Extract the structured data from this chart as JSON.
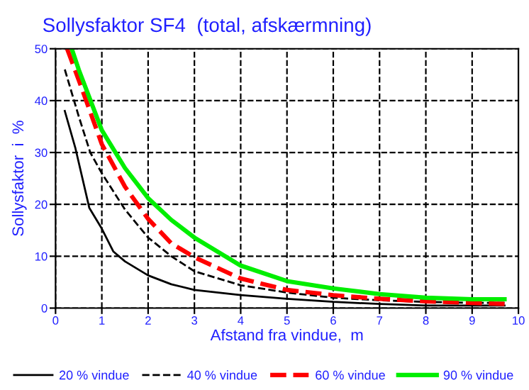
{
  "chart_data": {
    "type": "line",
    "title": "Sollysfaktor SF4  (total, afskærmning)",
    "xlabel": "Afstand fra vindue,  m",
    "ylabel": "Sollysfaktor  i  %",
    "xlim": [
      0,
      10
    ],
    "ylim": [
      0,
      50
    ],
    "xticks": [
      0,
      1,
      2,
      3,
      4,
      5,
      6,
      7,
      8,
      9,
      10
    ],
    "yticks": [
      0,
      10,
      20,
      30,
      40,
      50
    ],
    "grid": true,
    "legend": "bottom",
    "marker": "none",
    "series": [
      {
        "name": "20 % vindue",
        "color": "#000000",
        "line_style": "solid",
        "x": [
          0.2,
          0.43,
          0.73,
          1,
          1.25,
          1.5,
          2,
          2.5,
          3,
          4,
          5,
          6,
          7,
          8,
          9,
          9.7
        ],
        "values": [
          38,
          30.8,
          19.3,
          15.3,
          10.9,
          9,
          6.3,
          4.6,
          3.5,
          2.5,
          1.8,
          1.2,
          0.8,
          0.5,
          0.5,
          0.5
        ]
      },
      {
        "name": "40 % vindue",
        "color": "#000000",
        "line_style": "dashed",
        "x": [
          0.2,
          0.5,
          0.75,
          1,
          1.5,
          2,
          2.5,
          3,
          4,
          5,
          6,
          7,
          8,
          9,
          9.7
        ],
        "values": [
          46,
          37,
          30,
          26,
          19,
          13.6,
          10,
          7.1,
          4.4,
          3,
          2,
          1.5,
          1.2,
          1,
          1
        ]
      },
      {
        "name": "60 % vindue",
        "color": "#ff0000",
        "line_style": "dashed",
        "x": [
          0.25,
          0.5,
          1,
          1.5,
          2,
          2.5,
          3,
          4,
          5,
          6,
          7,
          8,
          9,
          9.7
        ],
        "values": [
          50,
          44,
          31.6,
          23.4,
          17.2,
          12.5,
          9.8,
          5.7,
          3.5,
          2.5,
          1.8,
          1.3,
          1,
          0.8
        ]
      },
      {
        "name": "90 % vindue",
        "color": "#00ee00",
        "line_style": "solid",
        "x": [
          0.35,
          0.5,
          1,
          1.5,
          2,
          2.5,
          3,
          4,
          5,
          6,
          7,
          8,
          9,
          9.7
        ],
        "values": [
          50,
          46,
          34.3,
          27,
          21.2,
          17,
          13.6,
          8.2,
          5.2,
          3.8,
          2.7,
          2,
          1.7,
          1.7
        ]
      }
    ]
  }
}
